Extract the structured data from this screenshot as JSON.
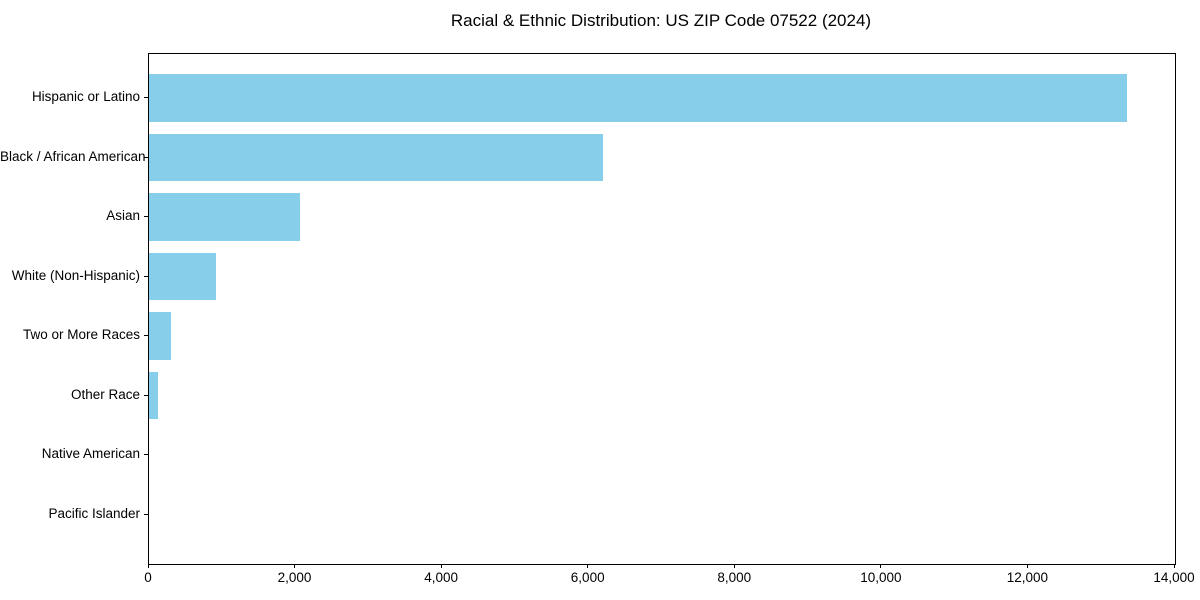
{
  "title": "Racial & Ethnic Distribution: US ZIP Code 07522 (2024)",
  "chart_data": {
    "type": "bar",
    "orientation": "horizontal",
    "title": "Racial & Ethnic Distribution: US ZIP Code 07522 (2024)",
    "categories": [
      "Hispanic or Latino",
      "Black / African American",
      "Asian",
      "White (Non-Hispanic)",
      "Two or More Races",
      "Other Race",
      "Native American",
      "Pacific Islander"
    ],
    "values": [
      13340,
      6200,
      2060,
      920,
      300,
      120,
      0,
      0
    ],
    "xlabel": "",
    "ylabel": "",
    "xlim": [
      0,
      14000
    ],
    "xticks": [
      0,
      2000,
      4000,
      6000,
      8000,
      10000,
      12000,
      14000
    ],
    "xtick_labels": [
      "0",
      "2,000",
      "4,000",
      "6,000",
      "8,000",
      "10,000",
      "12,000",
      "14,000"
    ],
    "bar_color": "#87CEEB",
    "axis_color": "#000000",
    "text_color": "#000000",
    "background_color": "#ffffff",
    "grid": false,
    "legend": null
  }
}
